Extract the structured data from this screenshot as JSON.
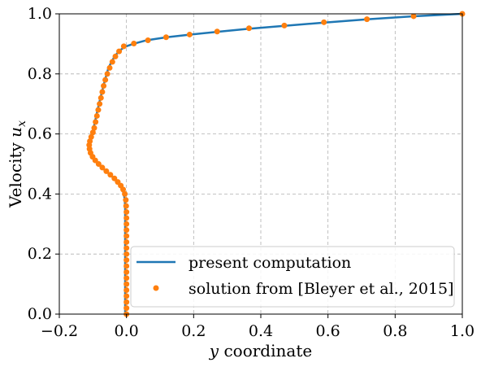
{
  "chart_data": {
    "type": "line",
    "xlabel_var": "y",
    "xlabel_rest": " coordinate",
    "ylabel_text": "Velocity ",
    "ylabel_var": "u",
    "ylabel_sub": "x",
    "xlim": [
      -0.2,
      1.0
    ],
    "ylim": [
      0.0,
      1.0
    ],
    "xticks": [
      -0.2,
      0.0,
      0.2,
      0.4,
      0.6,
      0.8,
      1.0
    ],
    "yticks": [
      0.0,
      0.2,
      0.4,
      0.6,
      0.8,
      1.0
    ],
    "xtick_labels": [
      "−0.2",
      "0.0",
      "0.2",
      "0.4",
      "0.6",
      "0.8",
      "1.0"
    ],
    "ytick_labels": [
      "0.0",
      "0.2",
      "0.4",
      "0.6",
      "0.8",
      "1.0"
    ],
    "grid": true,
    "legend_position": "lower-right",
    "series": [
      {
        "name": "present computation",
        "style": "line",
        "color": "#1f77b4",
        "points": [
          [
            -0.004,
            0.0
          ],
          [
            -0.004,
            0.05
          ],
          [
            -0.004,
            0.1
          ],
          [
            -0.004,
            0.15
          ],
          [
            -0.004,
            0.2
          ],
          [
            -0.004,
            0.25
          ],
          [
            -0.004,
            0.3
          ],
          [
            -0.004,
            0.35
          ],
          [
            -0.005,
            0.38
          ],
          [
            -0.008,
            0.4
          ],
          [
            -0.014,
            0.42
          ],
          [
            -0.022,
            0.435
          ],
          [
            -0.035,
            0.45
          ],
          [
            -0.05,
            0.465
          ],
          [
            -0.07,
            0.485
          ],
          [
            -0.088,
            0.505
          ],
          [
            -0.1,
            0.525
          ],
          [
            -0.107,
            0.545
          ],
          [
            -0.109,
            0.56
          ],
          [
            -0.108,
            0.575
          ],
          [
            -0.104,
            0.595
          ],
          [
            -0.098,
            0.62
          ],
          [
            -0.09,
            0.66
          ],
          [
            -0.082,
            0.7
          ],
          [
            -0.073,
            0.74
          ],
          [
            -0.064,
            0.78
          ],
          [
            -0.055,
            0.815
          ],
          [
            -0.045,
            0.84
          ],
          [
            -0.033,
            0.862
          ],
          [
            -0.02,
            0.878
          ],
          [
            -0.005,
            0.89
          ],
          [
            0.02,
            0.9
          ],
          [
            0.06,
            0.912
          ],
          [
            0.12,
            0.922
          ],
          [
            0.19,
            0.931
          ],
          [
            0.27,
            0.94
          ],
          [
            0.36,
            0.95
          ],
          [
            0.47,
            0.96
          ],
          [
            0.59,
            0.971
          ],
          [
            0.72,
            0.982
          ],
          [
            0.855,
            0.992
          ],
          [
            1.0,
            1.0
          ]
        ]
      },
      {
        "name": "solution from [Bleyer et al., 2015]",
        "style": "markers",
        "color": "#ff7f0e",
        "points": [
          [
            0.0,
            0.0
          ],
          [
            0.0,
            0.02
          ],
          [
            0.0,
            0.04
          ],
          [
            0.0,
            0.06
          ],
          [
            0.0,
            0.08
          ],
          [
            0.0,
            0.1
          ],
          [
            0.0,
            0.12
          ],
          [
            0.0,
            0.14
          ],
          [
            0.0,
            0.16
          ],
          [
            0.0,
            0.18
          ],
          [
            0.0,
            0.2
          ],
          [
            0.0,
            0.22
          ],
          [
            0.0,
            0.24
          ],
          [
            0.0,
            0.26
          ],
          [
            0.0,
            0.28
          ],
          [
            0.0,
            0.3
          ],
          [
            0.0,
            0.32
          ],
          [
            0.0,
            0.34
          ],
          [
            -0.001,
            0.36
          ],
          [
            -0.002,
            0.38
          ],
          [
            -0.005,
            0.4
          ],
          [
            -0.01,
            0.415
          ],
          [
            -0.017,
            0.428
          ],
          [
            -0.026,
            0.44
          ],
          [
            -0.036,
            0.452
          ],
          [
            -0.048,
            0.464
          ],
          [
            -0.06,
            0.476
          ],
          [
            -0.072,
            0.488
          ],
          [
            -0.083,
            0.5
          ],
          [
            -0.093,
            0.512
          ],
          [
            -0.101,
            0.524
          ],
          [
            -0.107,
            0.537
          ],
          [
            -0.11,
            0.55
          ],
          [
            -0.111,
            0.563
          ],
          [
            -0.109,
            0.576
          ],
          [
            -0.105,
            0.59
          ],
          [
            -0.1,
            0.605
          ],
          [
            -0.096,
            0.62
          ],
          [
            -0.092,
            0.64
          ],
          [
            -0.088,
            0.66
          ],
          [
            -0.084,
            0.68
          ],
          [
            -0.08,
            0.7
          ],
          [
            -0.076,
            0.72
          ],
          [
            -0.072,
            0.74
          ],
          [
            -0.068,
            0.76
          ],
          [
            -0.063,
            0.78
          ],
          [
            -0.057,
            0.8
          ],
          [
            -0.05,
            0.82
          ],
          [
            -0.042,
            0.84
          ],
          [
            -0.033,
            0.858
          ],
          [
            -0.022,
            0.875
          ],
          [
            -0.008,
            0.892
          ],
          [
            0.022,
            0.901
          ],
          [
            0.064,
            0.912
          ],
          [
            0.118,
            0.922
          ],
          [
            0.188,
            0.931
          ],
          [
            0.27,
            0.941
          ],
          [
            0.365,
            0.952
          ],
          [
            0.47,
            0.961
          ],
          [
            0.588,
            0.972
          ],
          [
            0.716,
            0.982
          ],
          [
            0.855,
            0.992
          ],
          [
            1.0,
            1.0
          ]
        ]
      }
    ]
  }
}
